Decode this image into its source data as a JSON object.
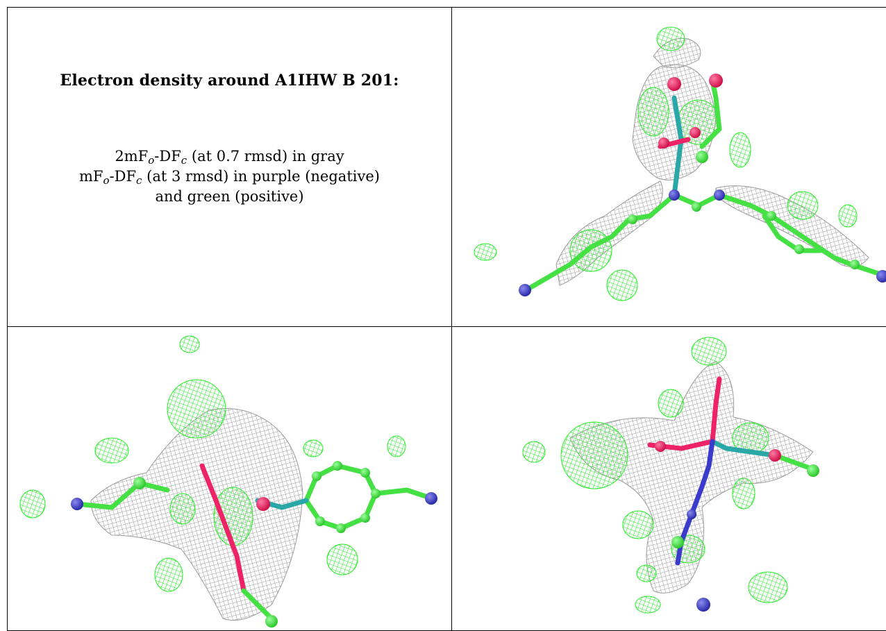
{
  "caption": {
    "title": "Electron density around A1IHW B 201:",
    "line1": {
      "pre": "2mF",
      "s1": "o",
      "mid": "-DF",
      "s2": "c",
      "post": " (at 0.7 rmsd) in gray"
    },
    "line2": {
      "pre": "mF",
      "s1": "o",
      "mid": "-DF",
      "s2": "c",
      "post": " (at 3 rmsd) in purple (negative)"
    },
    "line3": "and green (positive)"
  },
  "colors": {
    "positive_density": "#22ee22",
    "negative_density": "#aa22aa",
    "map_2fofc": "#9a9a9a",
    "carbon": "#44e044",
    "oxygen": "#ee2266",
    "nitrogen": "#3a3acc",
    "phosphorus_teal": "#2aa8a8"
  },
  "panels": [
    {
      "view": "top-right"
    },
    {
      "view": "bottom-left"
    },
    {
      "view": "bottom-right"
    }
  ]
}
